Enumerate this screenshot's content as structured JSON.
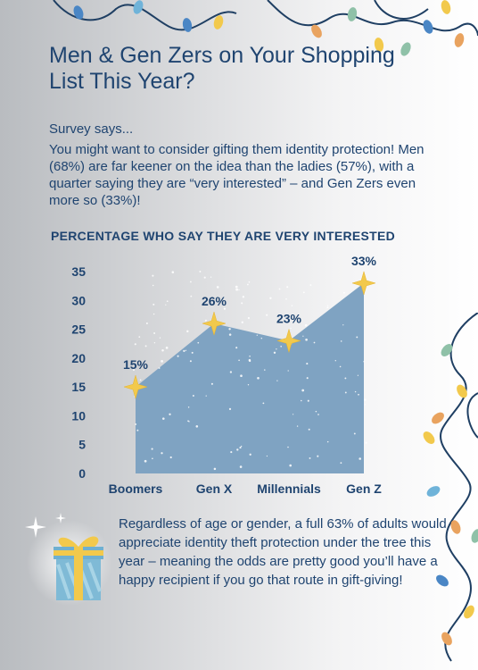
{
  "header": {
    "title": "Men & Gen Zers on Your Shopping List This Year?",
    "survey": "Survey says...",
    "intro": "You might want to consider gifting them identity protection! Men (68%) are far keener on the idea than the ladies (57%), with a quarter saying they are “very interested” – and Gen Zers even more so (33%)!"
  },
  "chart_data": {
    "type": "area",
    "title": "PERCENTAGE WHO SAY THEY ARE VERY INTERESTED",
    "categories": [
      "Boomers",
      "Gen X",
      "Millennials",
      "Gen Z"
    ],
    "values": [
      15,
      26,
      23,
      33
    ],
    "value_labels": [
      "15%",
      "26%",
      "23%",
      "33%"
    ],
    "yticks": [
      "0",
      "5",
      "10",
      "15",
      "20",
      "25",
      "30",
      "35"
    ],
    "ylim": [
      0,
      35
    ],
    "grid": false,
    "fill_color": "#7fa3c2",
    "marker": "star"
  },
  "footer": {
    "text": "Regardless of age or gender, a full 63% of adults would appreciate identity theft protection under the tree this year  – meaning the odds are pretty good you’ll have a happy recipient if you go that route in gift-giving!"
  },
  "decor": {
    "light_colors": [
      "#4a86c5",
      "#f2c94c",
      "#8fc1a8",
      "#e9a35f",
      "#6fb3d9"
    ],
    "wire_color": "#1f3f63",
    "gift_box": "gift-icon"
  }
}
